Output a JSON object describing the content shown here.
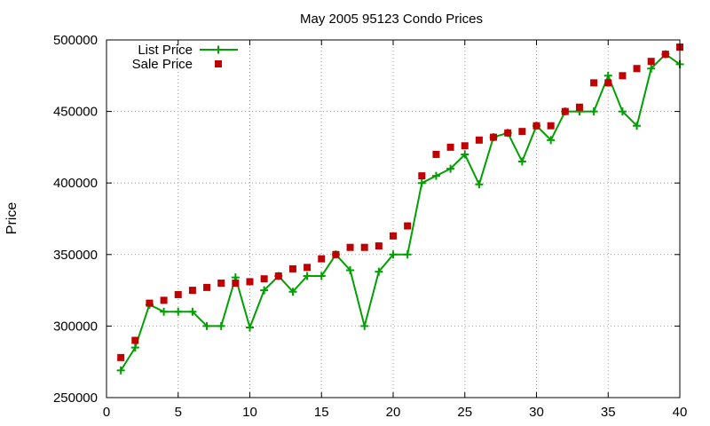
{
  "chart_data": {
    "type": "line",
    "title": "May 2005 95123 Condo Prices",
    "xlabel": "",
    "ylabel": "Price",
    "xlim": [
      0,
      40
    ],
    "ylim": [
      250000,
      500000
    ],
    "xticks": [
      0,
      5,
      10,
      15,
      20,
      25,
      30,
      35,
      40
    ],
    "yticks": [
      250000,
      300000,
      350000,
      400000,
      450000,
      500000
    ],
    "grid": true,
    "legend_position": "top-left",
    "series": [
      {
        "name": "List Price",
        "style": "linespoints",
        "marker": "plus",
        "color": "#00a000",
        "x": [
          1,
          2,
          3,
          4,
          5,
          6,
          7,
          8,
          9,
          10,
          11,
          12,
          13,
          14,
          15,
          16,
          17,
          18,
          19,
          20,
          21,
          22,
          23,
          24,
          25,
          26,
          27,
          28,
          29,
          30,
          31,
          32,
          33,
          34,
          35,
          36,
          37,
          38,
          39,
          40
        ],
        "values": [
          269000,
          285000,
          315000,
          310000,
          310000,
          310000,
          300000,
          300000,
          334000,
          299000,
          325000,
          335000,
          324000,
          335000,
          335000,
          350000,
          339000,
          300000,
          338000,
          350000,
          350000,
          400000,
          405000,
          410000,
          420000,
          399000,
          432000,
          435000,
          415000,
          440000,
          430000,
          450000,
          450000,
          450000,
          475000,
          450000,
          440000,
          480000,
          490000,
          483000
        ]
      },
      {
        "name": "Sale Price",
        "style": "points",
        "marker": "square",
        "color": "#c00000",
        "x": [
          1,
          2,
          3,
          4,
          5,
          6,
          7,
          8,
          9,
          10,
          11,
          12,
          13,
          14,
          15,
          16,
          17,
          18,
          19,
          20,
          21,
          22,
          23,
          24,
          25,
          26,
          27,
          28,
          29,
          30,
          31,
          32,
          33,
          34,
          35,
          36,
          37,
          38,
          39,
          40
        ],
        "values": [
          278000,
          290000,
          316000,
          318000,
          322000,
          325000,
          327000,
          330000,
          330000,
          331000,
          333000,
          335000,
          340000,
          341000,
          347000,
          350000,
          355000,
          355000,
          356000,
          363000,
          370000,
          405000,
          420000,
          425000,
          426000,
          430000,
          432000,
          435000,
          436000,
          440000,
          440000,
          450000,
          453000,
          470000,
          470000,
          475000,
          480000,
          485000,
          490000,
          495000
        ]
      }
    ]
  }
}
